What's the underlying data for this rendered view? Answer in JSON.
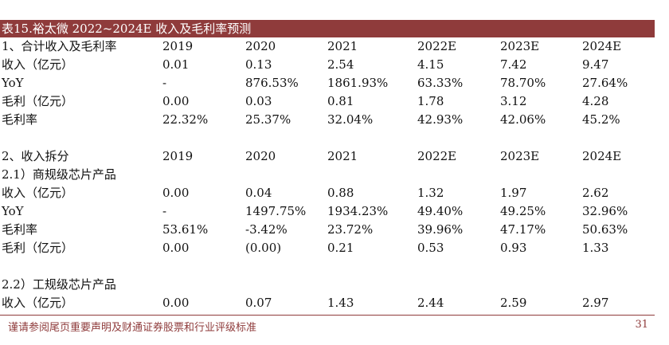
{
  "title": "表15.裕太微 2022~2024E 收入及毛利率预测",
  "rows": [
    [
      "1、合计收入及毛利率",
      "2019",
      "2020",
      "2021",
      "2022E",
      "2023E",
      "2024E"
    ],
    [
      "收入（亿元）",
      "0.01",
      "0.13",
      "2.54",
      "4.15",
      "7.42",
      "9.47"
    ],
    [
      "YoY",
      "-",
      "876.53%",
      "1861.93%",
      "63.33%",
      "78.70%",
      "27.64%"
    ],
    [
      "毛利（亿元）",
      "0.00",
      "0.03",
      "0.81",
      "1.78",
      "3.12",
      "4.28"
    ],
    [
      "毛利率",
      "22.32%",
      "25.37%",
      "32.04%",
      "42.93%",
      "42.06%",
      "45.2%"
    ],
    [
      "",
      "",
      "",
      "",
      "",
      "",
      ""
    ],
    [
      "2、收入拆分",
      "2019",
      "2020",
      "2021",
      "2022E",
      "2023E",
      "2024E"
    ],
    [
      "2.1）商规级芯片产品",
      "",
      "",
      "",
      "",
      "",
      ""
    ],
    [
      "收入（亿元）",
      "0.00",
      "0.04",
      "0.88",
      "1.32",
      "1.97",
      "2.62"
    ],
    [
      "YoY",
      "-",
      "1497.75%",
      "1934.23%",
      "49.40%",
      "49.25%",
      "32.96%"
    ],
    [
      "毛利率",
      "53.61%",
      "-3.42%",
      "23.72%",
      "39.96%",
      "47.17%",
      "50.63%"
    ],
    [
      "毛利（亿元）",
      "0.00",
      "(0.00)",
      "0.21",
      "0.53",
      "0.93",
      "1.33"
    ],
    [
      "",
      "",
      "",
      "",
      "",
      "",
      ""
    ],
    [
      "2.2）工规级芯片产品",
      "",
      "",
      "",
      "",
      "",
      ""
    ],
    [
      "收入（亿元）",
      "0.00",
      "0.07",
      "1.43",
      "2.44",
      "2.59",
      "2.97"
    ]
  ],
  "footer": {
    "disclaimer": "谨请参阅尾页重要声明及财通证券股票和行业评级标准",
    "page": "31"
  }
}
